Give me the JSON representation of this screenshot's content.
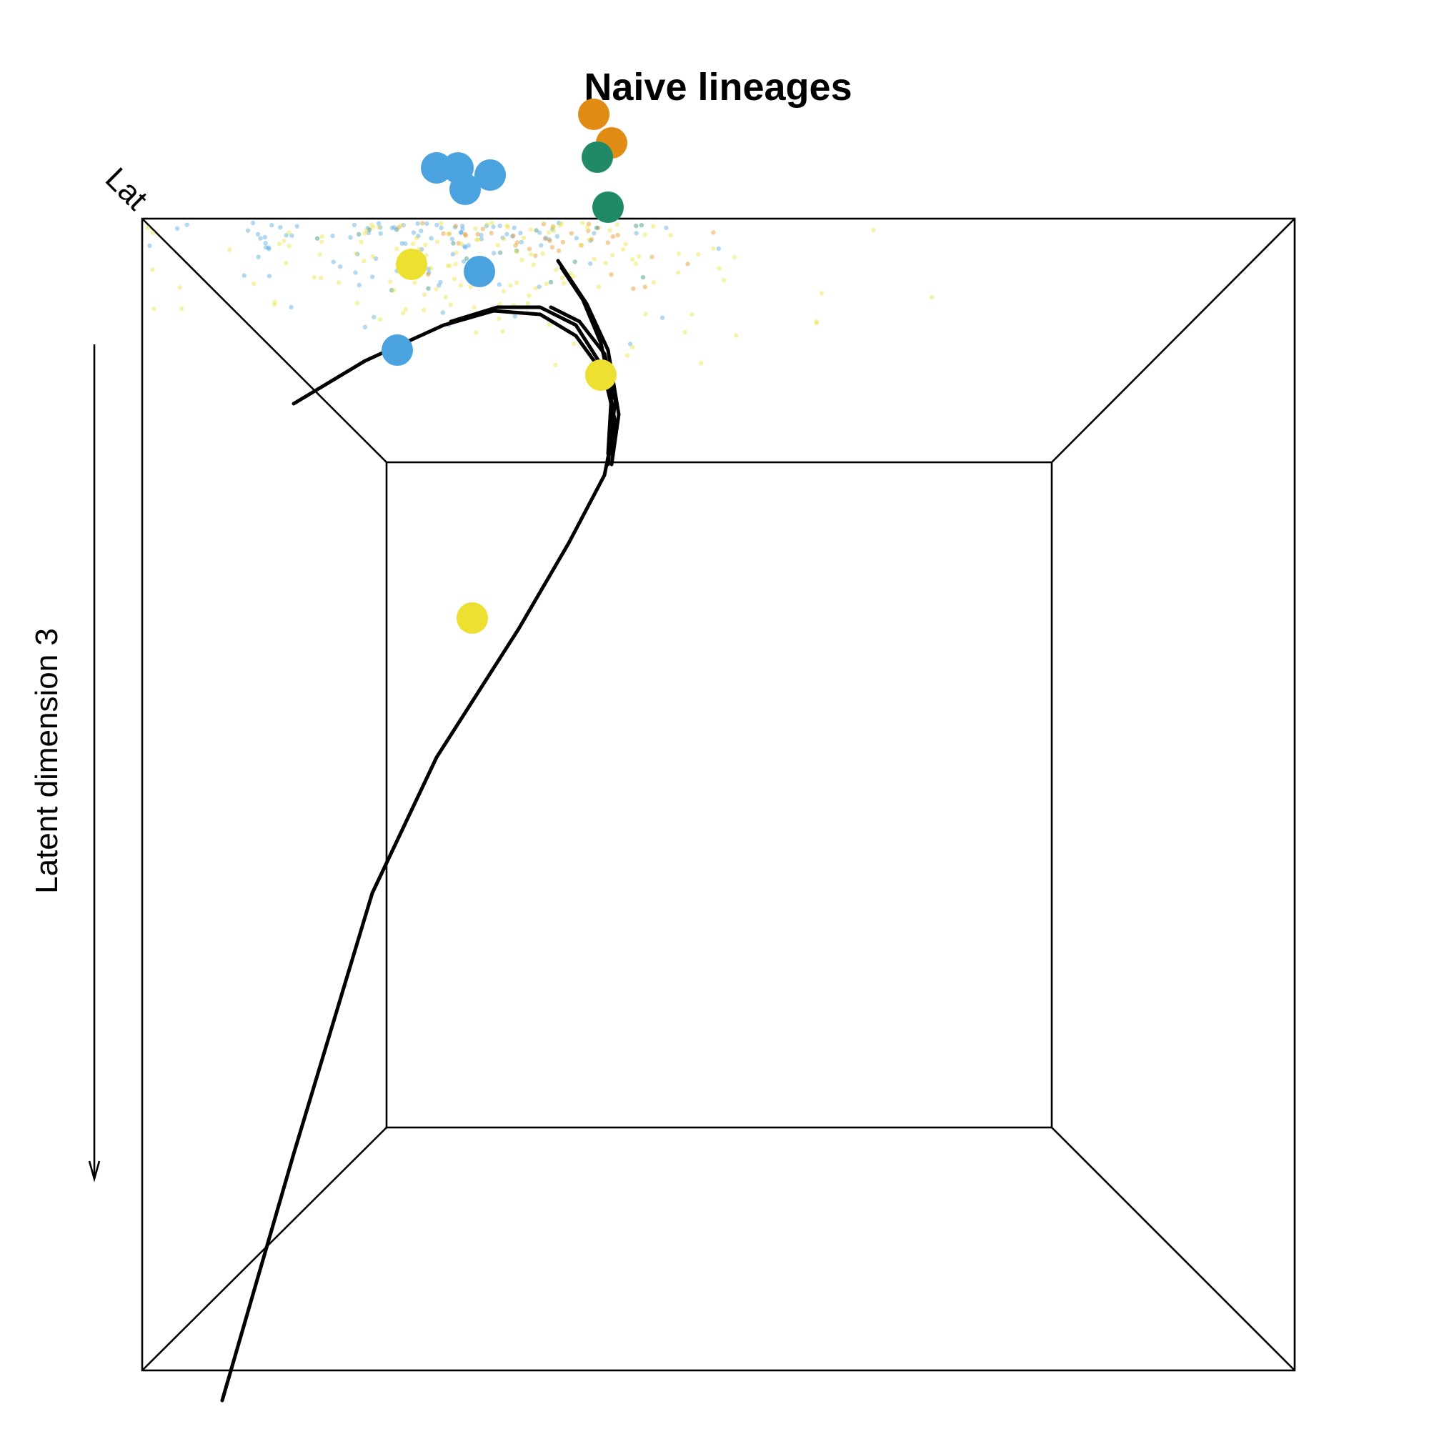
{
  "chart_data": {
    "type": "scatter",
    "title": "Naive lineages",
    "zlabel": "Latent dimension 3",
    "corner_label": "Lat",
    "colors": {
      "blue": "#4aa3df",
      "orange": "#e08c14",
      "green": "#1f8a65",
      "yellow": "#ede031"
    },
    "clouds": [
      {
        "color": "blue",
        "count": 1300,
        "x": 0.46,
        "y": 0.41,
        "sx": 0.3,
        "sy": 0.16,
        "seed": 11
      },
      {
        "color": "orange",
        "count": 900,
        "x": 0.82,
        "y": 0.41,
        "sx": 0.24,
        "sy": 0.12,
        "seed": 23
      },
      {
        "color": "green",
        "count": 260,
        "x": 0.72,
        "y": 0.44,
        "sx": 0.26,
        "sy": 0.12,
        "seed": 37
      },
      {
        "color": "yellow",
        "count": 340,
        "x": 0.65,
        "y": 0.58,
        "sx": 0.42,
        "sy": 0.18,
        "seed": 53
      }
    ],
    "centroids": [
      {
        "color": "blue",
        "x": 0.54,
        "y": 0.47
      },
      {
        "color": "blue",
        "x": 0.6,
        "y": 0.47
      },
      {
        "color": "blue",
        "x": 0.62,
        "y": 0.53
      },
      {
        "color": "blue",
        "x": 0.69,
        "y": 0.49
      },
      {
        "color": "blue",
        "x": 0.66,
        "y": 0.76
      },
      {
        "color": "blue",
        "x": 0.43,
        "y": 0.98
      },
      {
        "color": "orange",
        "x": 0.98,
        "y": 0.32
      },
      {
        "color": "orange",
        "x": 1.03,
        "y": 0.4
      },
      {
        "color": "green",
        "x": 0.99,
        "y": 0.44
      },
      {
        "color": "green",
        "x": 1.02,
        "y": 0.58
      },
      {
        "color": "yellow",
        "x": 0.47,
        "y": 0.74
      },
      {
        "color": "yellow",
        "x": 1.0,
        "y": 1.05
      },
      {
        "color": "yellow",
        "x": 0.64,
        "y": 1.73
      }
    ],
    "lineages": [
      [
        [
          0.14,
          1.13
        ],
        [
          0.34,
          1.01
        ],
        [
          0.56,
          0.91
        ],
        [
          0.7,
          0.87
        ],
        [
          0.83,
          0.88
        ],
        [
          0.93,
          0.94
        ],
        [
          1.01,
          1.05
        ],
        [
          1.04,
          1.18
        ],
        [
          1.01,
          1.33
        ],
        [
          0.91,
          1.52
        ],
        [
          0.77,
          1.76
        ],
        [
          0.54,
          2.12
        ],
        [
          0.36,
          2.5
        ],
        [
          0.14,
          3.23
        ],
        [
          -0.06,
          3.92
        ]
      ],
      [
        [
          0.58,
          0.9
        ],
        [
          0.71,
          0.86
        ],
        [
          0.83,
          0.86
        ],
        [
          0.93,
          0.91
        ],
        [
          1.0,
          1.02
        ],
        [
          1.03,
          1.13
        ],
        [
          1.03,
          1.27
        ]
      ],
      [
        [
          0.86,
          0.86
        ],
        [
          0.94,
          0.9
        ],
        [
          1.01,
          0.99
        ],
        [
          1.04,
          1.12
        ],
        [
          1.02,
          1.3
        ]
      ],
      [
        [
          0.89,
          0.75
        ],
        [
          0.95,
          0.84
        ],
        [
          1.0,
          0.96
        ],
        [
          1.03,
          1.1
        ],
        [
          1.02,
          1.27
        ]
      ],
      [
        [
          0.88,
          0.73
        ],
        [
          0.96,
          0.85
        ],
        [
          1.02,
          0.98
        ],
        [
          1.05,
          1.16
        ],
        [
          1.03,
          1.3
        ]
      ]
    ],
    "grid": false,
    "legend": "none"
  }
}
